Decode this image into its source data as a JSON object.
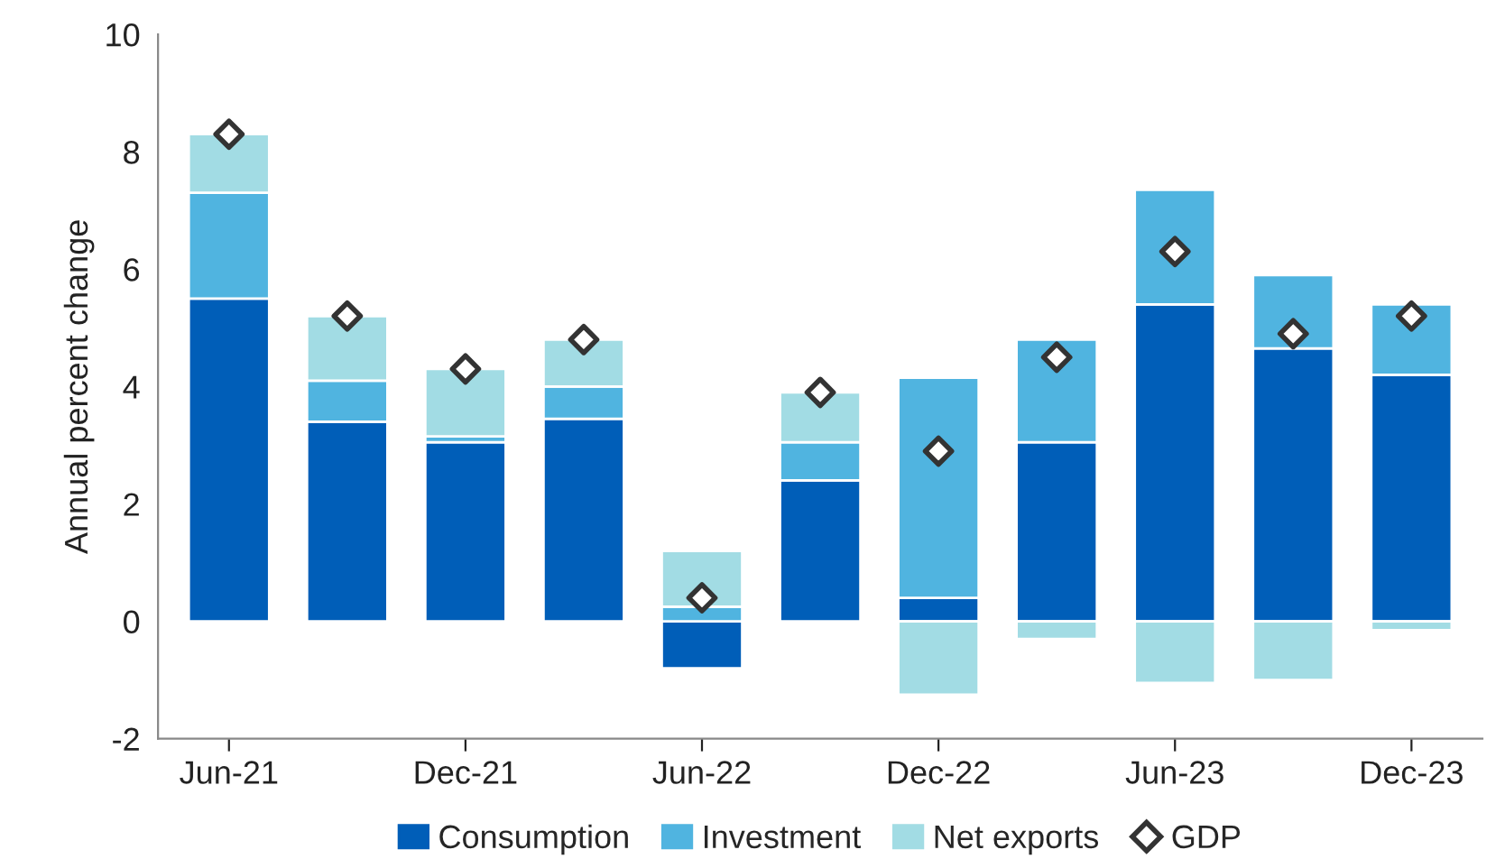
{
  "chart_data": {
    "type": "bar",
    "stacked": true,
    "ylabel": "Annual percent change",
    "categories": [
      "Jun-21",
      null,
      "Dec-21",
      null,
      "Jun-22",
      null,
      "Dec-22",
      null,
      "Jun-23",
      null,
      "Dec-23"
    ],
    "series": [
      {
        "name": "Consumption",
        "color": "#005eb8",
        "values": [
          5.5,
          3.4,
          3.05,
          3.45,
          -0.8,
          2.4,
          0.4,
          3.05,
          5.4,
          4.65,
          4.2
        ]
      },
      {
        "name": "Investment",
        "color": "#50b4e0",
        "values": [
          1.8,
          0.7,
          0.1,
          0.55,
          0.25,
          0.65,
          3.75,
          1.75,
          1.95,
          1.25,
          1.2
        ]
      },
      {
        "name": "Net exports",
        "color": "#a2dce4",
        "values": [
          1.0,
          1.1,
          1.15,
          0.8,
          0.95,
          0.85,
          -1.25,
          -0.3,
          -1.05,
          -1.0,
          -0.15
        ]
      },
      {
        "name": "GDP",
        "type": "scatter",
        "marker": "diamond",
        "color": "#ffffff",
        "values": [
          8.3,
          5.2,
          4.3,
          4.8,
          0.4,
          3.9,
          2.9,
          4.5,
          6.3,
          4.9,
          5.2
        ]
      }
    ],
    "ylim": [
      -2,
      10
    ],
    "yticks": [
      -2,
      0,
      2,
      4,
      6,
      8,
      10
    ],
    "grid": false,
    "legend": "bottom"
  }
}
